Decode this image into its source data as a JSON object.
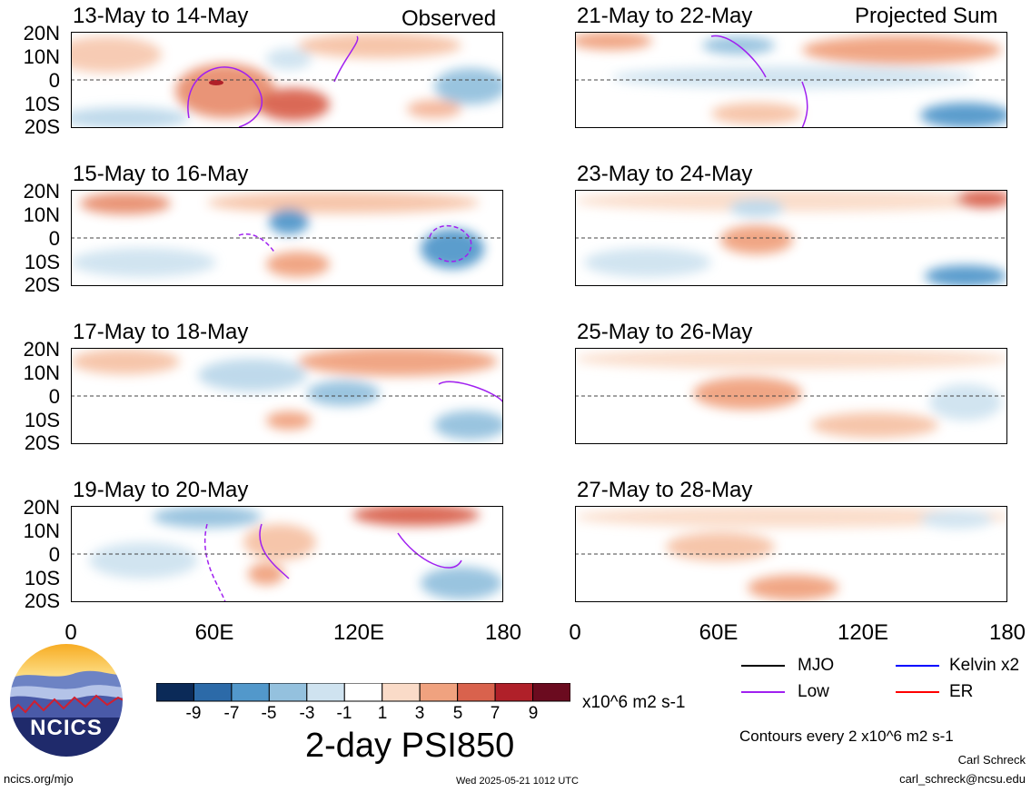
{
  "panels": [
    {
      "title": "13-May to 14-May",
      "corner": "Observed"
    },
    {
      "title": "21-May to 22-May",
      "corner": "Projected Sum"
    },
    {
      "title": "15-May to 16-May",
      "corner": ""
    },
    {
      "title": "23-May to 24-May",
      "corner": ""
    },
    {
      "title": "17-May to 18-May",
      "corner": ""
    },
    {
      "title": "25-May to 26-May",
      "corner": ""
    },
    {
      "title": "19-May to 20-May",
      "corner": ""
    },
    {
      "title": "27-May to 28-May",
      "corner": ""
    }
  ],
  "lat_labels": [
    "20N",
    "10N",
    "0",
    "10S",
    "20S"
  ],
  "lon_labels": [
    "0",
    "60E",
    "120E",
    "180"
  ],
  "colorbar": {
    "ticks": [
      "-9",
      "-7",
      "-5",
      "-3",
      "-1",
      "1",
      "3",
      "5",
      "7",
      "9"
    ],
    "colors": [
      "#0b2a58",
      "#2c6aa8",
      "#5298cb",
      "#94c1de",
      "#cfe3f0",
      "#ffffff",
      "#fadbc8",
      "#f0a27f",
      "#d9624d",
      "#b02029",
      "#6b0b1f"
    ],
    "units": "x10^6 m2 s-1"
  },
  "main_title": "2-day PSI850",
  "legend": {
    "items": [
      {
        "label": "MJO",
        "color": "#000000"
      },
      {
        "label": "Kelvin x2",
        "color": "#0000ff"
      },
      {
        "label": "Low",
        "color": "#a020f0"
      },
      {
        "label": "ER",
        "color": "#ff0000"
      }
    ],
    "note": "Contours every 2 x10^6 m2 s-1"
  },
  "logo_text": "NCICS",
  "footer": {
    "url": "ncics.org/mjo",
    "timestamp": "Wed 2025-05-21 1012 UTC",
    "author": "Carl Schreck",
    "email": "carl_schreck@ncsu.edu"
  }
}
